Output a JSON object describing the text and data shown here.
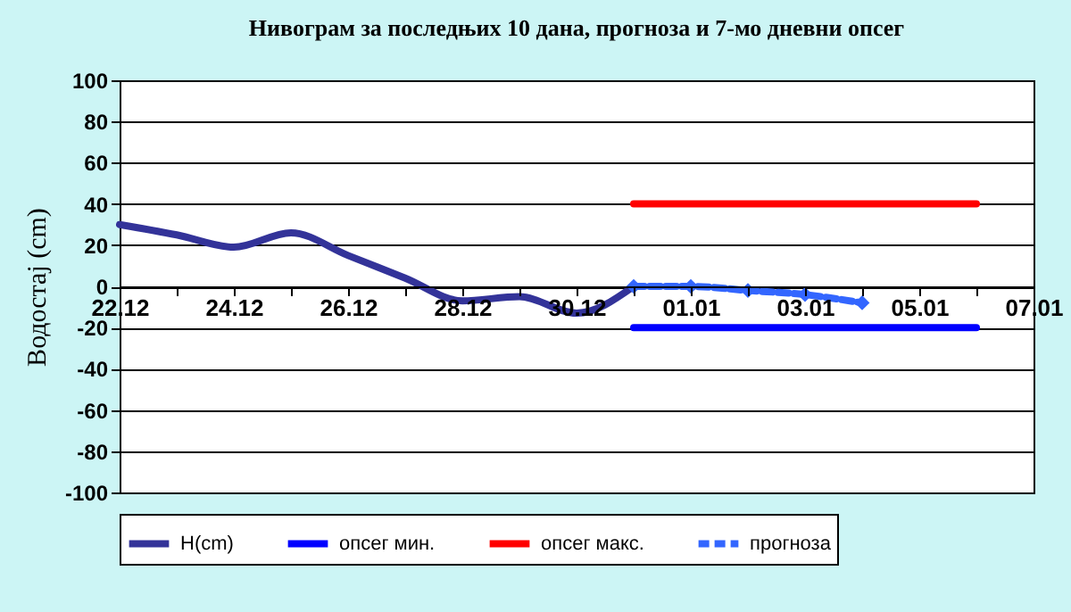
{
  "chart_data": {
    "type": "line",
    "title": "Нивограм за последњих 10 дана, прогноза и 7-мо дневни опсег",
    "ylabel": "Водостај (cm)",
    "categories": [
      "22.12",
      null,
      "24.12",
      null,
      "26.12",
      null,
      "28.12",
      null,
      "30.12",
      null,
      "01.01",
      null,
      "03.01",
      null,
      "05.01",
      null,
      "07.01"
    ],
    "ylim": [
      -100,
      100
    ],
    "yticks": [
      -100,
      -80,
      -60,
      -40,
      -20,
      0,
      20,
      40,
      60,
      80,
      100
    ],
    "grid": "y",
    "legend": "bottom",
    "series": [
      {
        "name": "H(cm)",
        "color": "#333399",
        "values": [
          30,
          25,
          19,
          26,
          15,
          4,
          -7,
          -5,
          -13,
          0,
          null,
          null,
          null,
          null,
          null,
          null,
          null
        ]
      },
      {
        "name": "опсег мин.",
        "color": "#0000ff",
        "values": [
          null,
          null,
          null,
          null,
          null,
          null,
          null,
          null,
          null,
          -20,
          -20,
          -20,
          -20,
          -20,
          -20,
          -20,
          null
        ]
      },
      {
        "name": "опсег макс.",
        "color": "#ff0000",
        "values": [
          null,
          null,
          null,
          null,
          null,
          null,
          null,
          null,
          null,
          40,
          40,
          40,
          40,
          40,
          40,
          40,
          null
        ]
      },
      {
        "name": "прогноза",
        "color": "#3366ff",
        "line_style": "dashed",
        "marker": "diamond",
        "values": [
          null,
          null,
          null,
          null,
          null,
          null,
          null,
          null,
          null,
          0,
          0,
          -2,
          -4,
          -8,
          null,
          null,
          null
        ]
      }
    ]
  }
}
